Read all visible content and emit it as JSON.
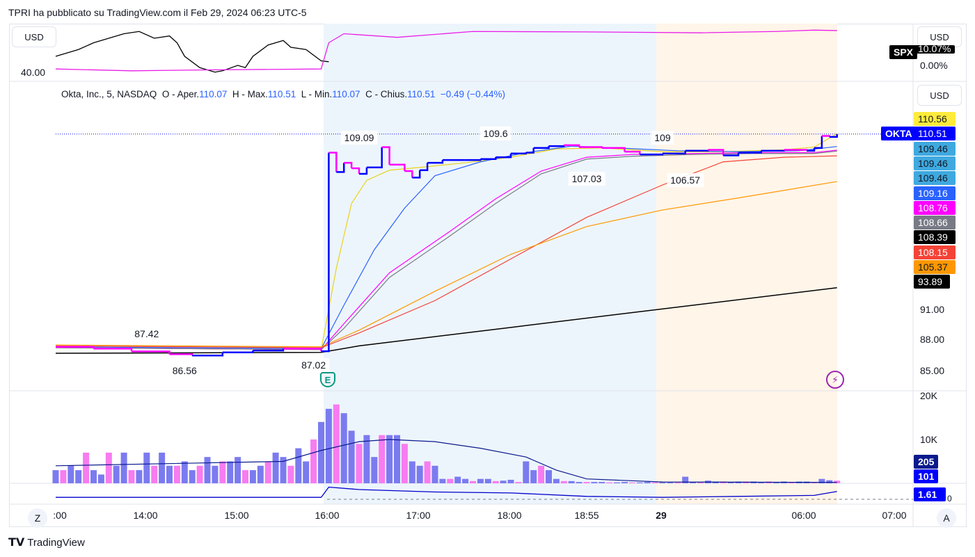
{
  "header": {
    "title": "TPRI ha pubblicato su TradingView.com il Feb 29, 2024 06:23 UTC-5"
  },
  "compare_pane": {
    "currency": "USD",
    "left_value": "40.00",
    "symbol": "SPX",
    "symbol_value": "10.07%",
    "zero": "0.00%"
  },
  "main_pane": {
    "currency": "USD",
    "legend": {
      "name": "Okta, Inc., 5, NASDAQ",
      "o_label": "O - Aper.",
      "o": "110.07",
      "h_label": "H - Max.",
      "h": "110.51",
      "l_label": "L - Min.",
      "l": "110.07",
      "c_label": "C - Chius.",
      "c": "110.51",
      "change": "−0.49 (−0.44%)"
    },
    "symbol_tag": "OKTA",
    "price_tags": [
      {
        "v": "110.56",
        "bg": "#ffeb3b",
        "fg": "#131722"
      },
      {
        "v": "110.51",
        "bg": "#0000ff",
        "fg": "#ffffff"
      },
      {
        "v": "109.46",
        "bg": "#3fa9df",
        "fg": "#131722"
      },
      {
        "v": "109.46",
        "bg": "#3fa9df",
        "fg": "#131722"
      },
      {
        "v": "109.46",
        "bg": "#3fa9df",
        "fg": "#131722"
      },
      {
        "v": "109.16",
        "bg": "#2962ff",
        "fg": "#ffffff"
      },
      {
        "v": "108.76",
        "bg": "#ff00ff",
        "fg": "#ffffff"
      },
      {
        "v": "108.66",
        "bg": "#787b86",
        "fg": "#ffffff"
      },
      {
        "v": "108.39",
        "bg": "#000000",
        "fg": "#ffffff"
      },
      {
        "v": "108.15",
        "bg": "#f44336",
        "fg": "#ffffff"
      },
      {
        "v": "105.37",
        "bg": "#ff9800",
        "fg": "#131722"
      },
      {
        "v": "93.89",
        "bg": "#000000",
        "fg": "#ffffff"
      }
    ],
    "axis_ticks": [
      "91.00",
      "88.00",
      "85.00"
    ],
    "earnings_marker": "E"
  },
  "volume_pane": {
    "ticks": [
      "20K",
      "10K"
    ],
    "tags": [
      {
        "v": "205",
        "bg": "#0a1a8c"
      },
      {
        "v": "101",
        "bg": "#0000ff"
      }
    ]
  },
  "indicator_pane": {
    "tag": "1.61",
    "zero": "0"
  },
  "time_axis": {
    "labels": [
      ":00",
      "14:00",
      "15:00",
      "16:00",
      "17:00",
      "18:00",
      "18:55",
      "29",
      "06:00",
      "07:00"
    ],
    "z_button": "Z",
    "a_button": "A"
  },
  "footer": {
    "brand": "TradingView"
  },
  "chart_data": {
    "type": "line",
    "x_unit": "bar index (5-min bars)",
    "price_range": [
      85,
      110.6
    ],
    "price": [
      [
        0,
        87.5
      ],
      [
        5,
        87.3
      ],
      [
        10,
        87.0
      ],
      [
        15,
        86.7
      ],
      [
        18,
        86.56
      ],
      [
        22,
        86.9
      ],
      [
        26,
        87.1
      ],
      [
        30,
        87.3
      ],
      [
        35,
        87.02
      ],
      [
        36,
        108.5
      ],
      [
        37,
        106.4
      ],
      [
        38,
        107.4
      ],
      [
        39,
        106.8
      ],
      [
        40,
        106.2
      ],
      [
        41,
        106.9
      ],
      [
        43,
        109.09
      ],
      [
        44,
        107.2
      ],
      [
        46,
        106.5
      ],
      [
        47,
        105.8
      ],
      [
        48,
        106.6
      ],
      [
        49,
        107.4
      ],
      [
        51,
        107.7
      ],
      [
        54,
        107.7
      ],
      [
        56,
        107.8
      ],
      [
        58,
        108.0
      ],
      [
        60,
        108.4
      ],
      [
        62,
        108.5
      ],
      [
        63,
        109.0
      ],
      [
        65,
        109.2
      ],
      [
        67,
        109.3
      ],
      [
        69,
        109.1
      ],
      [
        72,
        109.0
      ],
      [
        75,
        108.6
      ],
      [
        77,
        108.3
      ],
      [
        80,
        108.4
      ],
      [
        83,
        108.7
      ],
      [
        86,
        108.8
      ],
      [
        88,
        108.2
      ],
      [
        90,
        108.5
      ],
      [
        93,
        108.7
      ],
      [
        96,
        108.8
      ],
      [
        99,
        108.7
      ],
      [
        100,
        109.0
      ],
      [
        101,
        110.3
      ],
      [
        102,
        110.2
      ],
      [
        103,
        110.51
      ]
    ],
    "series": [
      {
        "name": "ma-yellow",
        "color": "#e8d21d",
        "values": [
          [
            0,
            87.4
          ],
          [
            35,
            87.2
          ],
          [
            37,
            96
          ],
          [
            39,
            103
          ],
          [
            41,
            105.5
          ],
          [
            44,
            106.6
          ],
          [
            48,
            106.9
          ],
          [
            54,
            107.4
          ],
          [
            60,
            108.0
          ],
          [
            66,
            108.9
          ],
          [
            72,
            109.0
          ],
          [
            80,
            108.6
          ],
          [
            88,
            108.6
          ],
          [
            96,
            108.8
          ],
          [
            100,
            109.1
          ],
          [
            103,
            110.56
          ]
        ]
      },
      {
        "name": "ma-blue",
        "color": "#2962ff",
        "values": [
          [
            0,
            87.5
          ],
          [
            35,
            87.3
          ],
          [
            38,
            92
          ],
          [
            42,
            98
          ],
          [
            46,
            102.5
          ],
          [
            50,
            106
          ],
          [
            56,
            107.5
          ],
          [
            62,
            108.5
          ],
          [
            68,
            109.2
          ],
          [
            74,
            109.0
          ],
          [
            82,
            108.7
          ],
          [
            90,
            108.6
          ],
          [
            98,
            108.7
          ],
          [
            103,
            109.16
          ]
        ]
      },
      {
        "name": "ma-magenta",
        "color": "#ff00ff",
        "values": [
          [
            0,
            87.4
          ],
          [
            35,
            87.2
          ],
          [
            38,
            90
          ],
          [
            44,
            95.5
          ],
          [
            52,
            100
          ],
          [
            58,
            103.5
          ],
          [
            64,
            106.5
          ],
          [
            70,
            108.0
          ],
          [
            76,
            108.3
          ],
          [
            84,
            108.4
          ],
          [
            92,
            108.5
          ],
          [
            100,
            108.5
          ],
          [
            103,
            108.76
          ]
        ]
      },
      {
        "name": "ma-gray",
        "color": "#787b86",
        "values": [
          [
            0,
            87.4
          ],
          [
            35,
            87.2
          ],
          [
            38,
            89.5
          ],
          [
            44,
            95
          ],
          [
            52,
            99.5
          ],
          [
            58,
            103
          ],
          [
            64,
            106.2
          ],
          [
            70,
            107.8
          ],
          [
            76,
            108.1
          ],
          [
            84,
            108.3
          ],
          [
            92,
            108.4
          ],
          [
            100,
            108.4
          ],
          [
            103,
            108.66
          ]
        ]
      },
      {
        "name": "ma-red",
        "color": "#f44336",
        "values": [
          [
            0,
            87.6
          ],
          [
            35,
            87.4
          ],
          [
            40,
            89
          ],
          [
            50,
            92.5
          ],
          [
            60,
            97
          ],
          [
            70,
            101.5
          ],
          [
            80,
            105
          ],
          [
            88,
            107.5
          ],
          [
            96,
            108
          ],
          [
            103,
            108.15
          ]
        ]
      },
      {
        "name": "ma-orange",
        "color": "#ff9800",
        "values": [
          [
            0,
            87.7
          ],
          [
            35,
            87.5
          ],
          [
            40,
            89.3
          ],
          [
            50,
            93.5
          ],
          [
            60,
            97.5
          ],
          [
            70,
            100.5
          ],
          [
            80,
            102.3
          ],
          [
            90,
            103.6
          ],
          [
            103,
            105.37
          ]
        ]
      },
      {
        "name": "ma-black",
        "color": "#000000",
        "values": [
          [
            0,
            86.8
          ],
          [
            35,
            86.9
          ],
          [
            40,
            87.6
          ],
          [
            60,
            89.6
          ],
          [
            80,
            91.6
          ],
          [
            103,
            93.89
          ]
        ]
      }
    ],
    "annotations": [
      {
        "text": "87.42",
        "x": 12,
        "p": 88.9
      },
      {
        "text": "86.56",
        "x": 17,
        "p": 84.9
      },
      {
        "text": "87.02",
        "x": 34,
        "p": 85.5
      },
      {
        "text": "109.09",
        "x": 40,
        "p": 110.1
      },
      {
        "text": "109.6",
        "x": 58,
        "p": 110.6
      },
      {
        "text": "109",
        "x": 80,
        "p": 110.1
      },
      {
        "text": "107.03",
        "x": 70,
        "p": 105.7
      },
      {
        "text": "106.57",
        "x": 83,
        "p": 105.5
      }
    ],
    "volume": [
      3,
      3,
      4,
      3,
      7,
      3,
      2,
      7,
      4,
      7,
      3,
      3,
      7,
      4,
      7,
      4,
      4,
      5,
      3,
      4,
      6,
      4,
      5,
      5,
      6,
      3,
      3,
      4,
      5,
      7,
      6,
      4,
      8,
      5,
      10,
      14,
      17,
      18,
      16,
      12,
      9,
      11,
      6,
      11,
      11,
      11,
      9,
      5,
      4,
      5,
      4,
      1,
      1,
      1.5,
      1,
      0.5,
      1,
      1,
      0.5,
      0.6,
      0.8,
      0.3,
      5,
      3,
      4,
      3,
      1,
      0.5,
      0.5,
      0.3,
      0.3,
      0.3,
      0.3,
      0.2,
      0.2,
      0.3,
      0.2,
      0.2,
      0.3,
      0.2,
      0.2,
      0.2,
      0.2,
      1.5,
      0.3,
      0.3,
      0.6,
      0.4,
      0.4,
      0.3,
      0.4,
      0.4,
      0.4,
      0.3,
      0.4,
      0.3,
      0.4,
      0.3,
      0.4,
      0.4,
      0.3,
      1,
      0.7,
      0.6
    ],
    "volume_ma": [
      [
        0,
        4
      ],
      [
        30,
        5
      ],
      [
        35,
        7.5
      ],
      [
        40,
        9.5
      ],
      [
        44,
        10
      ],
      [
        50,
        9.5
      ],
      [
        56,
        8
      ],
      [
        62,
        6
      ],
      [
        66,
        3
      ],
      [
        70,
        1
      ],
      [
        80,
        0.3
      ],
      [
        103,
        0.2
      ]
    ],
    "indicator": [
      [
        0,
        0.4
      ],
      [
        35,
        0.4
      ],
      [
        36,
        2.5
      ],
      [
        40,
        2
      ],
      [
        50,
        1.5
      ],
      [
        60,
        1.3
      ],
      [
        70,
        0.6
      ],
      [
        80,
        0.4
      ],
      [
        90,
        0.6
      ],
      [
        100,
        0.8
      ],
      [
        103,
        1.61
      ]
    ],
    "compare_spx": [
      [
        0,
        60
      ],
      [
        3,
        45
      ],
      [
        5,
        30
      ],
      [
        7,
        20
      ],
      [
        9,
        10
      ],
      [
        11,
        5
      ],
      [
        13,
        20
      ],
      [
        15,
        15
      ],
      [
        16,
        30
      ],
      [
        17,
        60
      ],
      [
        19,
        85
      ],
      [
        21,
        95
      ],
      [
        22,
        92
      ],
      [
        24,
        80
      ],
      [
        25,
        85
      ],
      [
        26,
        60
      ],
      [
        28,
        35
      ],
      [
        30,
        25
      ],
      [
        31,
        40
      ],
      [
        33,
        45
      ],
      [
        35,
        70
      ],
      [
        36,
        72
      ]
    ],
    "compare_okta": [
      [
        0,
        88
      ],
      [
        10,
        92
      ],
      [
        20,
        90
      ],
      [
        35,
        88
      ],
      [
        36,
        30
      ],
      [
        38,
        10
      ],
      [
        45,
        18
      ],
      [
        55,
        5
      ],
      [
        70,
        6
      ],
      [
        85,
        8
      ],
      [
        95,
        5
      ],
      [
        100,
        2
      ],
      [
        103,
        3
      ]
    ]
  }
}
